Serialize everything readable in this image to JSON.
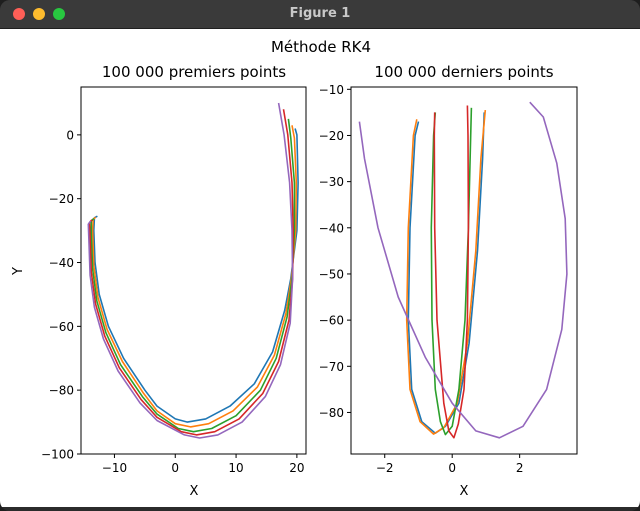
{
  "window": {
    "title": "Figure 1"
  },
  "figure": {
    "suptitle": "Méthode RK4"
  },
  "chart_data": [
    {
      "type": "line",
      "title": "100 000 premiers points",
      "xlabel": "X",
      "ylabel": "Y",
      "xlim": [
        -15.5,
        21.5
      ],
      "ylim": [
        -100,
        15
      ],
      "xticks": [
        {
          "v": -10,
          "label": "−10"
        },
        {
          "v": 0,
          "label": "0"
        },
        {
          "v": 10,
          "label": "10"
        },
        {
          "v": 20,
          "label": "20"
        }
      ],
      "yticks": [
        {
          "v": 0,
          "label": "0"
        },
        {
          "v": -20,
          "label": "−20"
        },
        {
          "v": -40,
          "label": "−40"
        },
        {
          "v": -60,
          "label": "−60"
        },
        {
          "v": -80,
          "label": "−80"
        },
        {
          "v": -100,
          "label": "−100"
        }
      ],
      "series": [
        {
          "color": "#1f77b4",
          "points": [
            [
              -12.8,
              -25.5
            ],
            [
              -13.3,
              -26
            ],
            [
              -13.4,
              -30
            ],
            [
              -13.2,
              -40
            ],
            [
              -12.5,
              -50
            ],
            [
              -11,
              -60
            ],
            [
              -8.5,
              -70
            ],
            [
              -5,
              -80
            ],
            [
              -3,
              -85
            ],
            [
              0,
              -89
            ],
            [
              2,
              -90
            ],
            [
              5,
              -89
            ],
            [
              9,
              -85
            ],
            [
              13,
              -78
            ],
            [
              16,
              -68
            ],
            [
              18,
              -55
            ],
            [
              19,
              -45
            ],
            [
              20,
              -30
            ],
            [
              20.2,
              -15
            ],
            [
              20,
              0
            ],
            [
              19.7,
              2
            ]
          ]
        },
        {
          "color": "#ff7f0e",
          "points": [
            [
              -13.1,
              -25.8
            ],
            [
              -13.5,
              -26.5
            ],
            [
              -13.6,
              -30
            ],
            [
              -13.4,
              -41
            ],
            [
              -12.7,
              -51
            ],
            [
              -11.2,
              -61
            ],
            [
              -8.7,
              -71
            ],
            [
              -5.2,
              -81
            ],
            [
              -3,
              -86.5
            ],
            [
              0,
              -90.5
            ],
            [
              2.5,
              -91.5
            ],
            [
              5.5,
              -90.5
            ],
            [
              9.5,
              -86.5
            ],
            [
              13.5,
              -79
            ],
            [
              16.3,
              -69
            ],
            [
              18.2,
              -56
            ],
            [
              19.1,
              -45
            ],
            [
              19.8,
              -30
            ],
            [
              19.9,
              -15
            ],
            [
              19.6,
              -1
            ],
            [
              19.2,
              3
            ]
          ]
        },
        {
          "color": "#2ca02c",
          "points": [
            [
              -13.4,
              -26.2
            ],
            [
              -13.8,
              -27
            ],
            [
              -13.8,
              -31
            ],
            [
              -13.6,
              -42
            ],
            [
              -12.9,
              -52
            ],
            [
              -11.4,
              -62
            ],
            [
              -9,
              -72
            ],
            [
              -5.4,
              -82
            ],
            [
              -3,
              -87.5
            ],
            [
              0.5,
              -92
            ],
            [
              3,
              -93
            ],
            [
              6,
              -92
            ],
            [
              10,
              -88
            ],
            [
              14,
              -80
            ],
            [
              16.6,
              -70
            ],
            [
              18.4,
              -57
            ],
            [
              19.2,
              -45
            ],
            [
              19.6,
              -30
            ],
            [
              19.6,
              -15
            ],
            [
              19,
              -1
            ],
            [
              18.6,
              5
            ]
          ]
        },
        {
          "color": "#d62728",
          "points": [
            [
              -13.7,
              -26.6
            ],
            [
              -14.1,
              -27.5
            ],
            [
              -14,
              -32
            ],
            [
              -13.8,
              -43
            ],
            [
              -13.1,
              -53
            ],
            [
              -11.6,
              -63
            ],
            [
              -9.2,
              -73
            ],
            [
              -5.6,
              -83
            ],
            [
              -3,
              -88.5
            ],
            [
              1,
              -93
            ],
            [
              3.5,
              -94
            ],
            [
              6.5,
              -93
            ],
            [
              10.5,
              -89
            ],
            [
              14.4,
              -81
            ],
            [
              17,
              -71
            ],
            [
              18.7,
              -58
            ],
            [
              19.3,
              -45
            ],
            [
              19.4,
              -30
            ],
            [
              19.2,
              -15
            ],
            [
              18.5,
              0
            ],
            [
              17.8,
              8
            ]
          ]
        },
        {
          "color": "#9467bd",
          "points": [
            [
              -13.9,
              -27
            ],
            [
              -14.3,
              -28
            ],
            [
              -14.2,
              -33
            ],
            [
              -14,
              -44
            ],
            [
              -13.3,
              -54
            ],
            [
              -11.8,
              -64
            ],
            [
              -9.4,
              -74
            ],
            [
              -5.8,
              -84
            ],
            [
              -3,
              -89.5
            ],
            [
              1.5,
              -94
            ],
            [
              4,
              -95
            ],
            [
              7,
              -94
            ],
            [
              11,
              -90
            ],
            [
              14.8,
              -82
            ],
            [
              17.3,
              -72
            ],
            [
              18.9,
              -59
            ],
            [
              19.3,
              -45
            ],
            [
              19.2,
              -30
            ],
            [
              18.8,
              -15
            ],
            [
              17.9,
              0
            ],
            [
              17,
              10
            ]
          ]
        }
      ]
    },
    {
      "type": "line",
      "title": "100 000 derniers points",
      "xlabel": "X",
      "ylabel": "",
      "xlim": [
        -3,
        3.7
      ],
      "ylim": [
        -89,
        -9.5
      ],
      "xticks": [
        {
          "v": -2,
          "label": "−2"
        },
        {
          "v": 0,
          "label": "0"
        },
        {
          "v": 2,
          "label": "2"
        }
      ],
      "yticks": [
        {
          "v": -10,
          "label": "−10"
        },
        {
          "v": -20,
          "label": "−20"
        },
        {
          "v": -30,
          "label": "−30"
        },
        {
          "v": -40,
          "label": "−40"
        },
        {
          "v": -50,
          "label": "−50"
        },
        {
          "v": -60,
          "label": "−60"
        },
        {
          "v": -70,
          "label": "−70"
        },
        {
          "v": -80,
          "label": "−80"
        }
      ],
      "series": [
        {
          "color": "#1f77b4",
          "points": [
            [
              -1.0,
              -17
            ],
            [
              -1.1,
              -20
            ],
            [
              -1.25,
              -40
            ],
            [
              -1.3,
              -60
            ],
            [
              -1.2,
              -75
            ],
            [
              -0.9,
              -82
            ],
            [
              -0.5,
              -84.5
            ],
            [
              -0.2,
              -83
            ],
            [
              0.2,
              -78
            ],
            [
              0.5,
              -65
            ],
            [
              0.75,
              -45
            ],
            [
              0.9,
              -25
            ],
            [
              0.95,
              -15
            ]
          ]
        },
        {
          "color": "#ff7f0e",
          "points": [
            [
              -1.05,
              -16.5
            ],
            [
              -1.15,
              -20
            ],
            [
              -1.3,
              -40
            ],
            [
              -1.35,
              -60
            ],
            [
              -1.25,
              -75
            ],
            [
              -0.95,
              -82
            ],
            [
              -0.55,
              -84.7
            ],
            [
              -0.25,
              -83.3
            ],
            [
              0.15,
              -78
            ],
            [
              0.45,
              -65
            ],
            [
              0.7,
              -45
            ],
            [
              0.85,
              -25
            ],
            [
              0.98,
              -14.5
            ]
          ]
        },
        {
          "color": "#2ca02c",
          "points": [
            [
              -0.5,
              -15
            ],
            [
              -0.55,
              -20
            ],
            [
              -0.62,
              -40
            ],
            [
              -0.6,
              -60
            ],
            [
              -0.5,
              -75
            ],
            [
              -0.35,
              -82
            ],
            [
              -0.2,
              -84.8
            ],
            [
              0.0,
              -83
            ],
            [
              0.2,
              -75
            ],
            [
              0.38,
              -60
            ],
            [
              0.48,
              -40
            ],
            [
              0.55,
              -20
            ],
            [
              0.57,
              -14
            ]
          ]
        },
        {
          "color": "#d62728",
          "points": [
            [
              0.45,
              -13.5
            ],
            [
              0.47,
              -20
            ],
            [
              0.48,
              -40
            ],
            [
              0.45,
              -60
            ],
            [
              0.35,
              -75
            ],
            [
              0.18,
              -82.5
            ],
            [
              0.05,
              -85.5
            ],
            [
              -0.1,
              -84
            ],
            [
              -0.25,
              -78
            ],
            [
              -0.45,
              -60
            ],
            [
              -0.52,
              -40
            ],
            [
              -0.53,
              -20
            ],
            [
              -0.52,
              -15
            ]
          ]
        },
        {
          "color": "#9467bd",
          "points": [
            [
              -2.75,
              -17
            ],
            [
              -2.6,
              -25
            ],
            [
              -2.2,
              -40
            ],
            [
              -1.6,
              -55
            ],
            [
              -0.8,
              -68
            ],
            [
              0.0,
              -78
            ],
            [
              0.7,
              -84
            ],
            [
              1.4,
              -85.5
            ],
            [
              2.1,
              -83
            ],
            [
              2.8,
              -75
            ],
            [
              3.25,
              -62
            ],
            [
              3.4,
              -50
            ],
            [
              3.35,
              -38
            ],
            [
              3.1,
              -26
            ],
            [
              2.7,
              -16
            ],
            [
              2.3,
              -12.8
            ]
          ]
        }
      ]
    }
  ]
}
